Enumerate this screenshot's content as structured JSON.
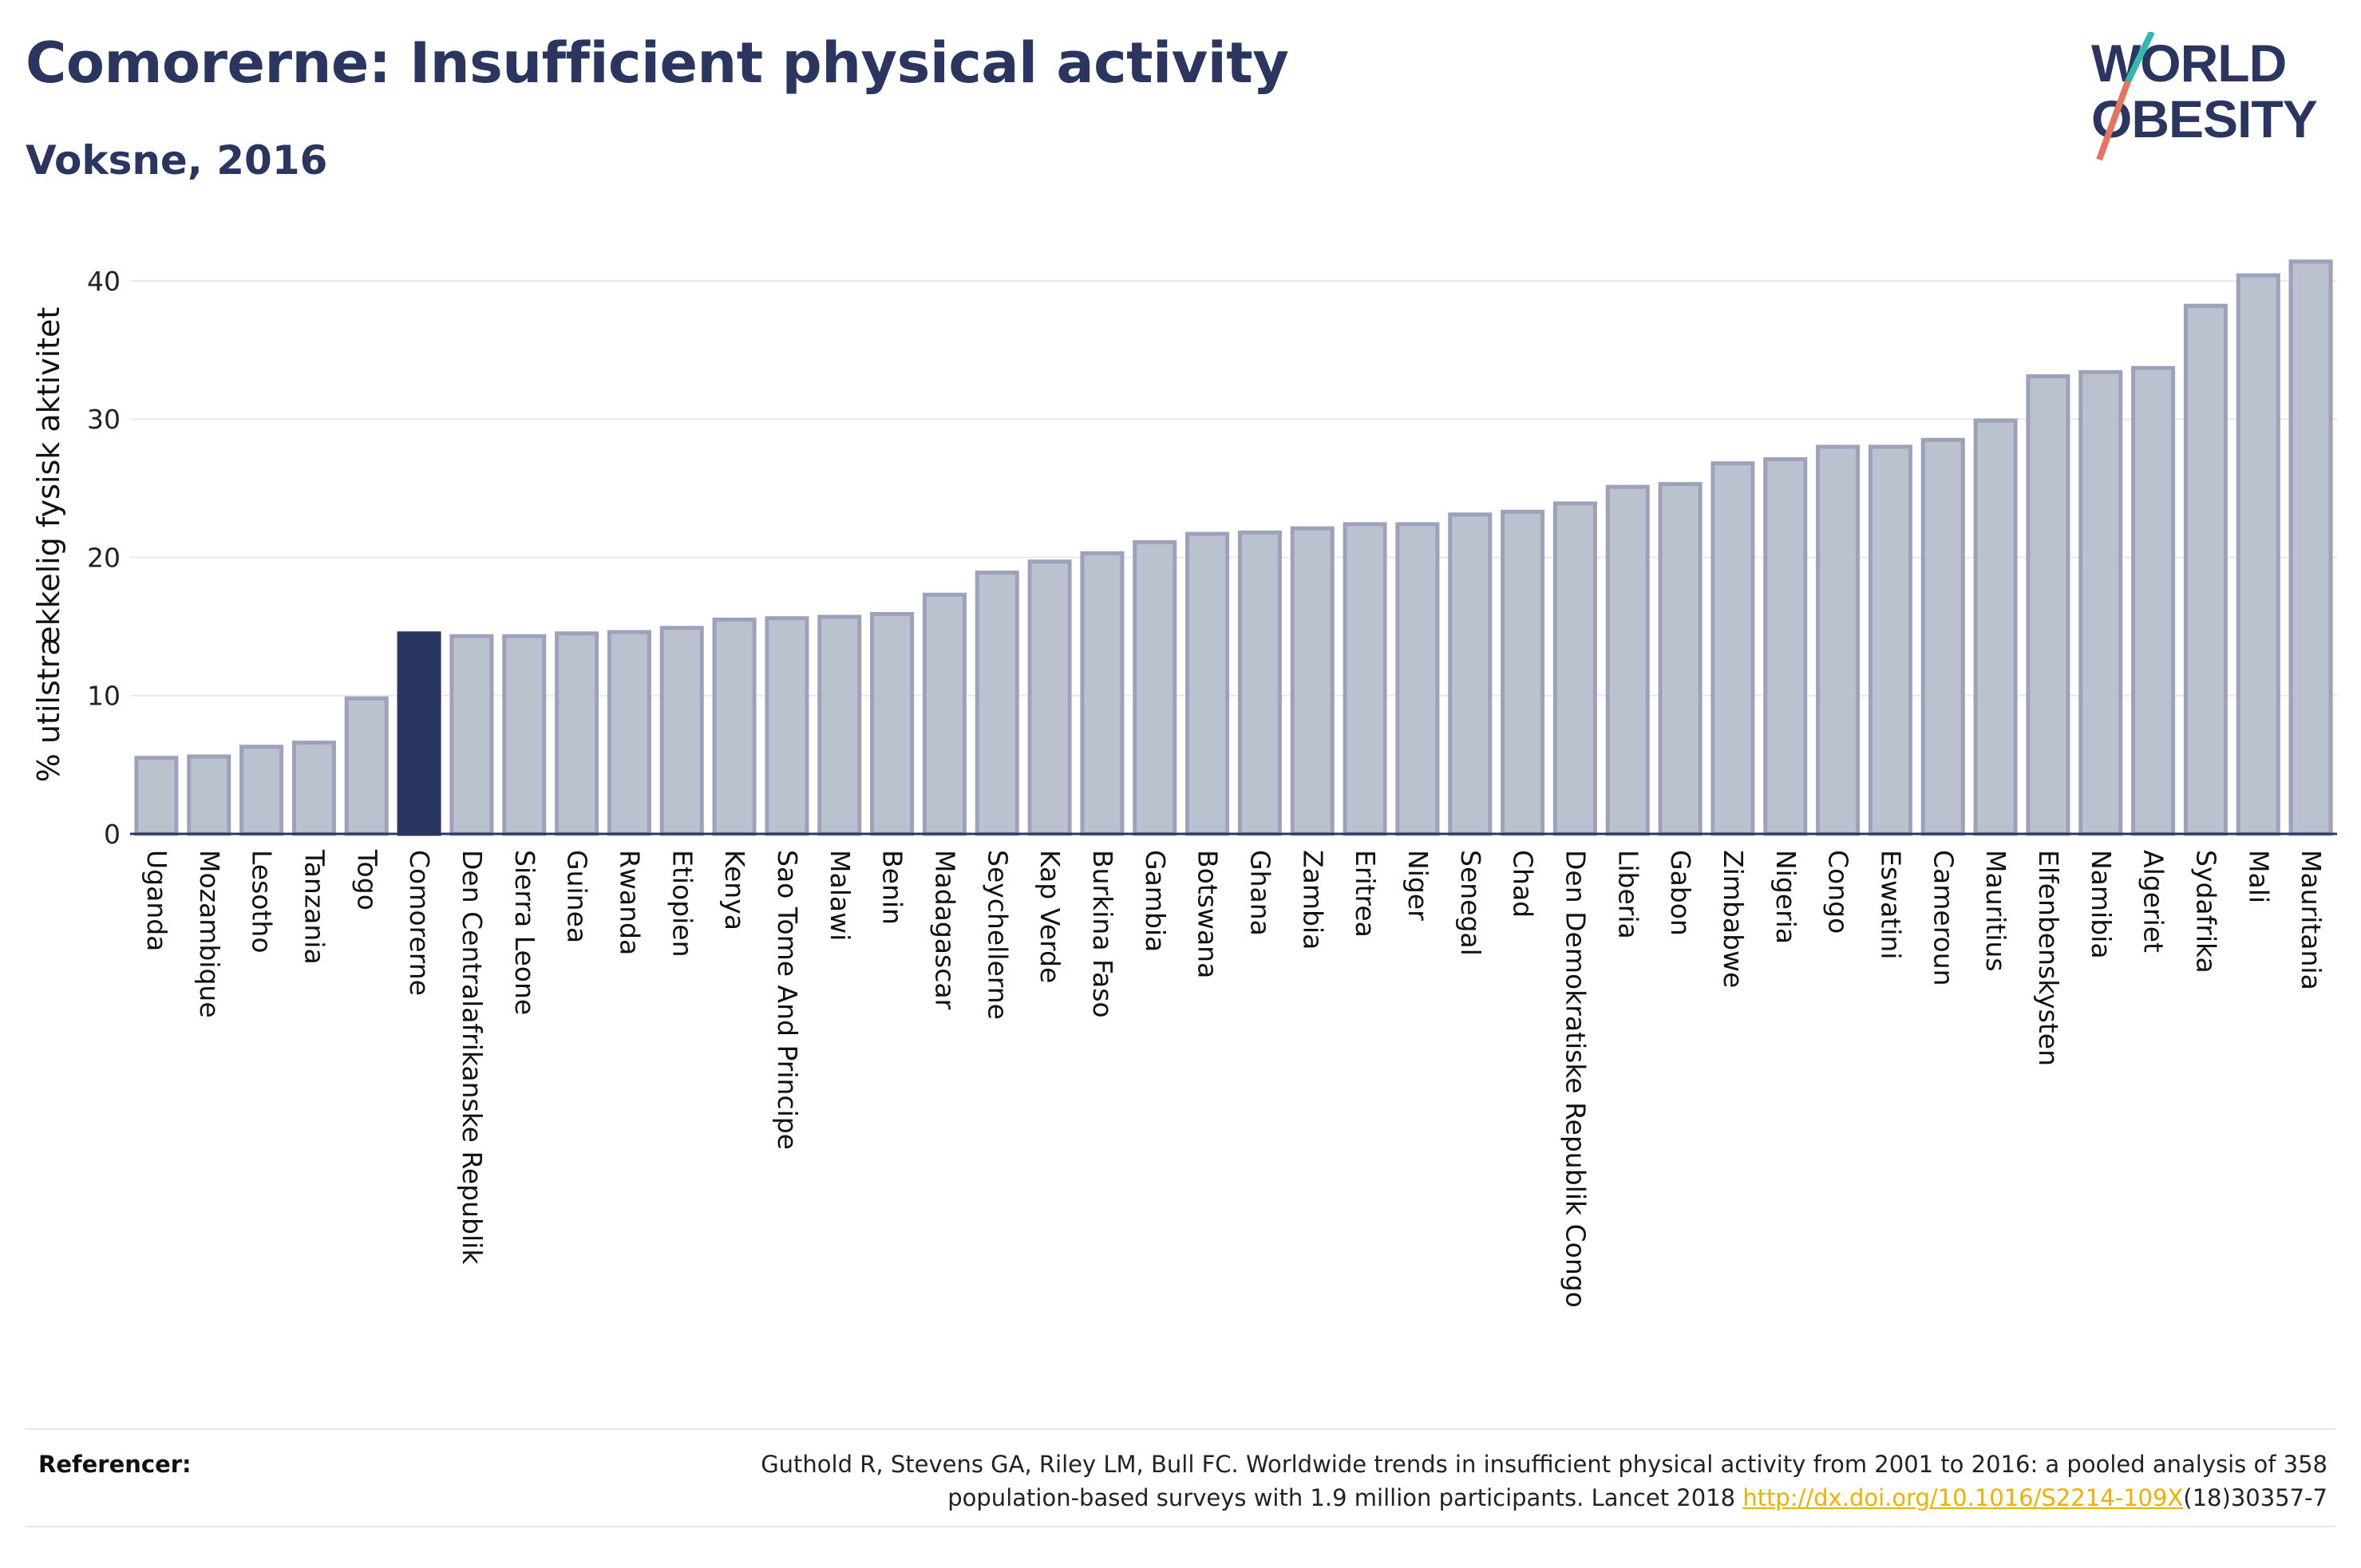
{
  "header": {
    "title": "Comorerne: Insufficient physical activity",
    "subtitle": "Voksne, 2016"
  },
  "logo": {
    "line1": "WORLD",
    "line2": "OBESITY"
  },
  "chart_data": {
    "type": "bar",
    "ylabel": "% utilstrækkelig fysisk aktivitet",
    "ylim": [
      0,
      43
    ],
    "yticks": [
      0,
      10,
      20,
      30,
      40
    ],
    "grid": true,
    "highlight": "Comorerne",
    "colors": {
      "bar": "#bcc1cf",
      "bar_edge": "#9ba2ba",
      "highlight": "#2a3560",
      "grid": "#e8e8ec",
      "axis": "#2a3560"
    },
    "categories": [
      "Uganda",
      "Mozambique",
      "Lesotho",
      "Tanzania",
      "Togo",
      "Comorerne",
      "Den Centralafrikanske Republik",
      "Sierra Leone",
      "Guinea",
      "Rwanda",
      "Etiopien",
      "Kenya",
      "Sao Tome And Principe",
      "Malawi",
      "Benin",
      "Madagascar",
      "Seychellerne",
      "Kap Verde",
      "Burkina Faso",
      "Gambia",
      "Botswana",
      "Ghana",
      "Zambia",
      "Eritrea",
      "Niger",
      "Senegal",
      "Chad",
      "Den Demokratiske Republik Congo",
      "Liberia",
      "Gabon",
      "Zimbabwe",
      "Nigeria",
      "Congo",
      "Eswatini",
      "Cameroun",
      "Mauritius",
      "Elfenbenskysten",
      "Namibia",
      "Algeriet",
      "Sydafrika",
      "Mali",
      "Mauritania"
    ],
    "values": [
      5.5,
      5.6,
      6.3,
      6.6,
      9.8,
      14.5,
      14.3,
      14.3,
      14.5,
      14.6,
      14.9,
      15.5,
      15.6,
      15.7,
      15.9,
      17.3,
      18.9,
      19.7,
      20.3,
      21.1,
      21.7,
      21.8,
      22.1,
      22.4,
      22.4,
      23.1,
      23.3,
      23.9,
      25.1,
      25.3,
      26.8,
      27.1,
      28.0,
      28.0,
      28.5,
      29.9,
      33.1,
      33.4,
      33.7,
      38.2,
      40.4,
      41.4
    ]
  },
  "references": {
    "label": "Referencer:",
    "text_line1": "Guthold R, Stevens GA, Riley LM, Bull FC. Worldwide trends in insufficient physical activity from 2001 to 2016: a pooled analysis of 358",
    "text_line2_pre": "population-based surveys with 1.9 million participants. Lancet 2018 ",
    "link": "http://dx.doi.org/10.1016/S2214-109X",
    "text_line2_post": "(18)30357-7"
  }
}
